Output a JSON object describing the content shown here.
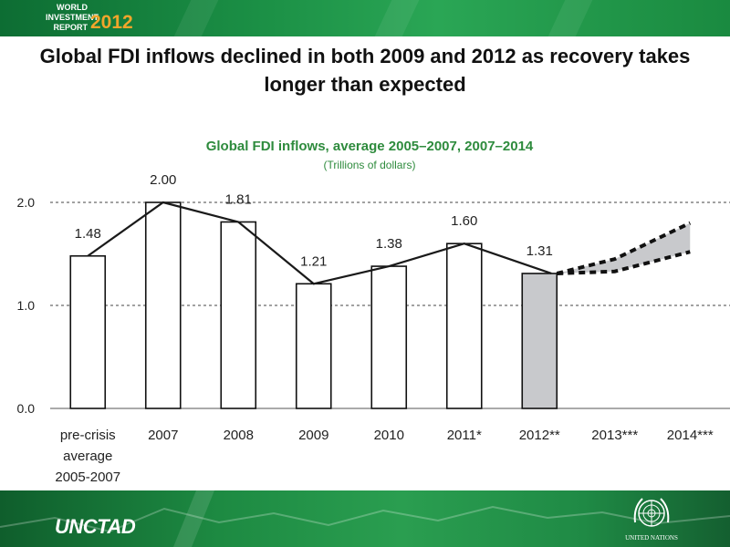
{
  "logo": {
    "line1": "WORLD",
    "line2": "INVESTMENT",
    "line3": "REPORT",
    "year": "2012"
  },
  "headline": "Global FDI inflows declined in both 2009 and 2012 as recovery takes longer than expected",
  "footer": {
    "org": "UNCTAD",
    "un_label": "UNITED NATIONS"
  },
  "colors": {
    "title_green": "#2e8b3d",
    "bar_fill": "#ffffff",
    "bar_highlight_fill": "#c8c9cc",
    "line": "#1a1a1a",
    "projection_band": "#c8c9cc"
  },
  "chart_data": {
    "type": "bar",
    "title": "Global FDI inflows, average 2005–2007, 2007–2014",
    "subtitle": "(Trillions of dollars)",
    "xlabel": "",
    "ylabel": "",
    "ylim": [
      0,
      2.0
    ],
    "yticks": [
      "0.0",
      "1.0",
      "2.0"
    ],
    "categories": [
      "pre-crisis average 2005-2007",
      "2007",
      "2008",
      "2009",
      "2010",
      "2011*",
      "2012**",
      "2013***",
      "2014***"
    ],
    "category_labels": [
      [
        "pre-crisis",
        "average",
        "2005-2007"
      ],
      [
        "2007"
      ],
      [
        "2008"
      ],
      [
        "2009"
      ],
      [
        "2010"
      ],
      [
        "2011*"
      ],
      [
        "2012**"
      ],
      [
        "2013***"
      ],
      [
        "2014***"
      ]
    ],
    "values": [
      1.48,
      2.0,
      1.81,
      1.21,
      1.38,
      1.6,
      1.31,
      null,
      null
    ],
    "value_labels": [
      "1.48",
      "2.00",
      "1.81",
      "1.21",
      "1.38",
      "1.60",
      "1.31",
      "",
      ""
    ],
    "highlight_index": 6,
    "projection": {
      "categories": [
        "2012**",
        "2013***",
        "2014***"
      ],
      "upper": [
        1.31,
        1.45,
        1.8
      ],
      "lower": [
        1.31,
        1.33,
        1.52
      ]
    },
    "grid": true
  }
}
